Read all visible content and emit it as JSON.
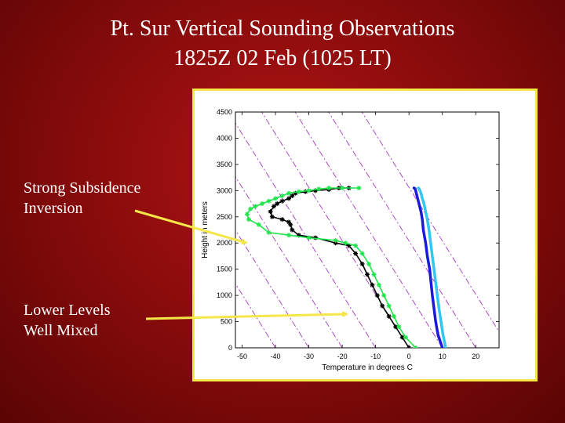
{
  "slide": {
    "title_line1": "Pt. Sur Vertical Sounding Observations",
    "title_line2": "1825Z 02 Feb (1025 LT)"
  },
  "annotations": {
    "upper": {
      "line1": "Strong Subsidence",
      "line2": "Inversion"
    },
    "lower": {
      "line1": "Lower Levels",
      "line2": "Well Mixed"
    },
    "arrow_color": "#f5e64a"
  },
  "chart_data": {
    "type": "line",
    "xlabel": "Temperature in degrees C",
    "ylabel": "Height in meters",
    "xlim": [
      -52,
      27
    ],
    "ylim": [
      0,
      4500
    ],
    "xticks": [
      -50,
      -40,
      -30,
      -20,
      -10,
      0,
      10,
      20
    ],
    "yticks": [
      0,
      500,
      1000,
      1500,
      2000,
      2500,
      3000,
      3500,
      4000,
      4500
    ],
    "dry_adiabats_color": "#a020c0",
    "dry_adiabats_origin_x": [
      -40,
      -30,
      -20,
      -10,
      0,
      10,
      20,
      30
    ],
    "series": [
      {
        "color": "#1a1ad8",
        "marker": "line",
        "x": [
          10,
          8.7,
          8,
          7.5,
          7,
          6.6,
          6.2,
          5.5,
          5,
          4.3,
          4,
          3.6,
          3,
          2.6,
          2.2,
          2,
          1.8,
          1.5
        ],
        "y": [
          0,
          250,
          500,
          750,
          1000,
          1250,
          1500,
          1750,
          2000,
          2250,
          2450,
          2600,
          2750,
          2850,
          2950,
          3000,
          3040,
          3050
        ]
      },
      {
        "color": "#33c6f2",
        "marker": "line",
        "x": [
          11,
          10.2,
          9.6,
          9,
          8.5,
          8,
          7.5,
          7,
          6.5,
          6,
          5.5,
          5,
          4.5,
          4,
          3.6,
          3.3,
          3,
          2.8
        ],
        "y": [
          0,
          250,
          500,
          750,
          1000,
          1250,
          1500,
          1750,
          2000,
          2250,
          2450,
          2600,
          2750,
          2850,
          2950,
          3000,
          3040,
          3050
        ]
      },
      {
        "color": "#000000",
        "marker": "star",
        "x": [
          0,
          -2,
          -4,
          -6,
          -8,
          -9.5,
          -11,
          -12.5,
          -14,
          -16,
          -18,
          -22,
          -28,
          -33,
          -35,
          -35.5,
          -36,
          -38,
          -41,
          -41.5,
          -40.5,
          -39.5,
          -38,
          -36,
          -35,
          -34,
          -31,
          -28,
          -24,
          -21,
          -18
        ],
        "y": [
          0,
          200,
          400,
          600,
          800,
          1000,
          1200,
          1400,
          1600,
          1800,
          1950,
          2000,
          2100,
          2150,
          2250,
          2350,
          2400,
          2450,
          2500,
          2600,
          2700,
          2750,
          2800,
          2850,
          2900,
          2950,
          2980,
          3000,
          3020,
          3050,
          3050
        ]
      },
      {
        "color": "#1ee64a",
        "marker": "star",
        "x": [
          2,
          -1,
          -3,
          -4.5,
          -6,
          -7.5,
          -9,
          -10.5,
          -12,
          -14,
          -16,
          -19,
          -22,
          -30,
          -36,
          -42,
          -45,
          -48,
          -48.5,
          -47.5,
          -46,
          -44,
          -42,
          -40,
          -38,
          -36,
          -33,
          -30,
          -27,
          -24,
          -20,
          -15
        ],
        "y": [
          0,
          200,
          400,
          600,
          800,
          1000,
          1200,
          1400,
          1600,
          1800,
          1950,
          2000,
          2050,
          2100,
          2150,
          2200,
          2350,
          2450,
          2550,
          2650,
          2700,
          2750,
          2800,
          2850,
          2900,
          2950,
          2980,
          3000,
          3030,
          3050,
          3050,
          3050
        ]
      }
    ]
  }
}
